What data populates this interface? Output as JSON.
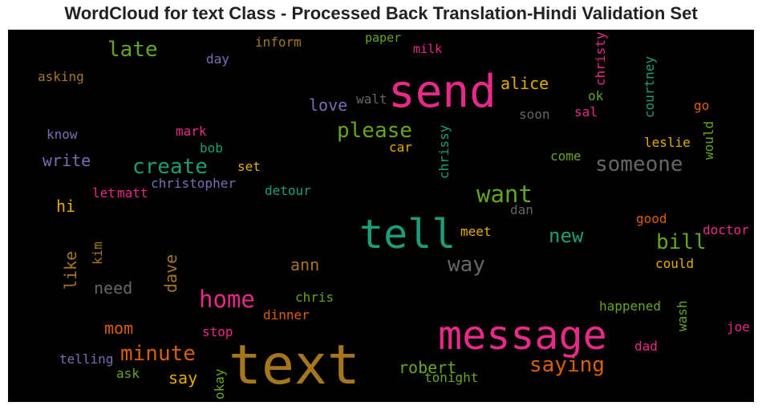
{
  "title": "WordCloud for text Class - Processed Back Translation-Hindi Validation Set",
  "colors": {
    "pink": "#e7298a",
    "teal": "#1b9e77",
    "brown": "#a6761d",
    "orange": "#d95f02",
    "olive": "#66a61e",
    "gold": "#e6ab02",
    "purple": "#7570b3",
    "gray": "#666666"
  },
  "words": {
    "send": "send",
    "late": "late",
    "inform": "inform",
    "paper": "paper",
    "milk": "milk",
    "day": "day",
    "asking": "asking",
    "alice": "alice",
    "christy": "christy",
    "courtney": "courtney",
    "walt": "walt",
    "love": "love",
    "ok": "ok",
    "sal": "sal",
    "go": "go",
    "soon": "soon",
    "know": "know",
    "mark": "mark",
    "please": "please",
    "chrissy": "chrissy",
    "would": "would",
    "leslie": "leslie",
    "bob": "bob",
    "car": "car",
    "create": "create",
    "come": "come",
    "someone": "someone",
    "write": "write",
    "set": "set",
    "christopher": "christopher",
    "let": "let",
    "matt": "matt",
    "detour": "detour",
    "want": "want",
    "hi": "hi",
    "dan": "dan",
    "tell": "tell",
    "good": "good",
    "meet": "meet",
    "new": "new",
    "doctor": "doctor",
    "bill": "bill",
    "kim": "kim",
    "like": "like",
    "dave": "dave",
    "ann": "ann",
    "way": "way",
    "could": "could",
    "need": "need",
    "home": "home",
    "chris": "chris",
    "happened": "happened",
    "dinner": "dinner",
    "mom": "mom",
    "wash": "wash",
    "stop": "stop",
    "message": "message",
    "joe": "joe",
    "minute": "minute",
    "dad": "dad",
    "text": "text",
    "telling": "telling",
    "saying": "saying",
    "say": "say",
    "robert": "robert",
    "ask": "ask",
    "tonight": "tonight",
    "okay": "okay"
  }
}
